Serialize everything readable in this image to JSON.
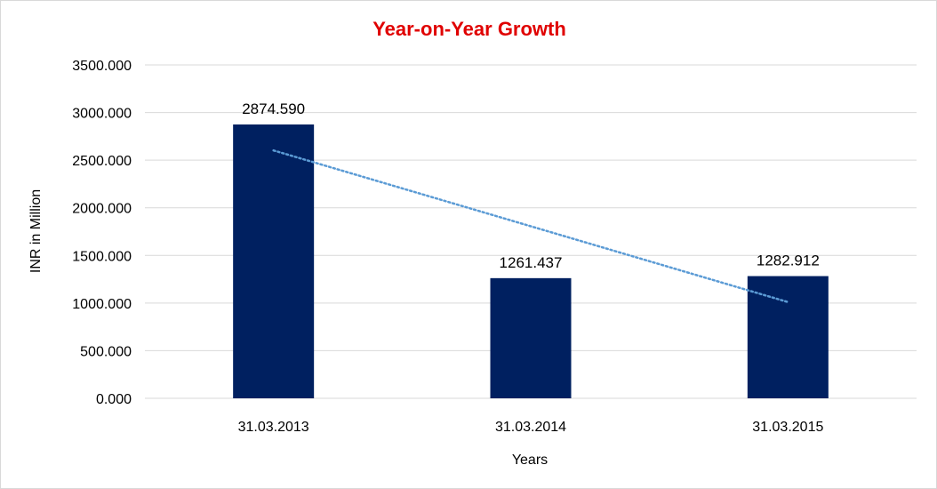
{
  "chart_data": {
    "type": "bar",
    "title": "Year-on-Year Growth",
    "xlabel": "Years",
    "ylabel": "INR in Million",
    "categories": [
      "31.03.2013",
      "31.03.2014",
      "31.03.2015"
    ],
    "values": [
      2874.59,
      1261.437,
      1282.912
    ],
    "data_labels": [
      "2874.590",
      "1261.437",
      "1282.912"
    ],
    "ylim": [
      0,
      3500
    ],
    "y_ticks": [
      "0.000",
      "500.000",
      "1000.000",
      "1500.000",
      "2000.000",
      "2500.000",
      "3000.000",
      "3500.000"
    ],
    "y_tick_values": [
      0,
      500,
      1000,
      1500,
      2000,
      2500,
      3000,
      3500
    ],
    "grid": true,
    "legend": "none",
    "trendline": {
      "type": "linear",
      "style": "dotted"
    },
    "colors": {
      "bar": "#002060",
      "title": "#e00000",
      "trendline": "#5b9bd5",
      "grid": "#d9d9d9"
    }
  }
}
